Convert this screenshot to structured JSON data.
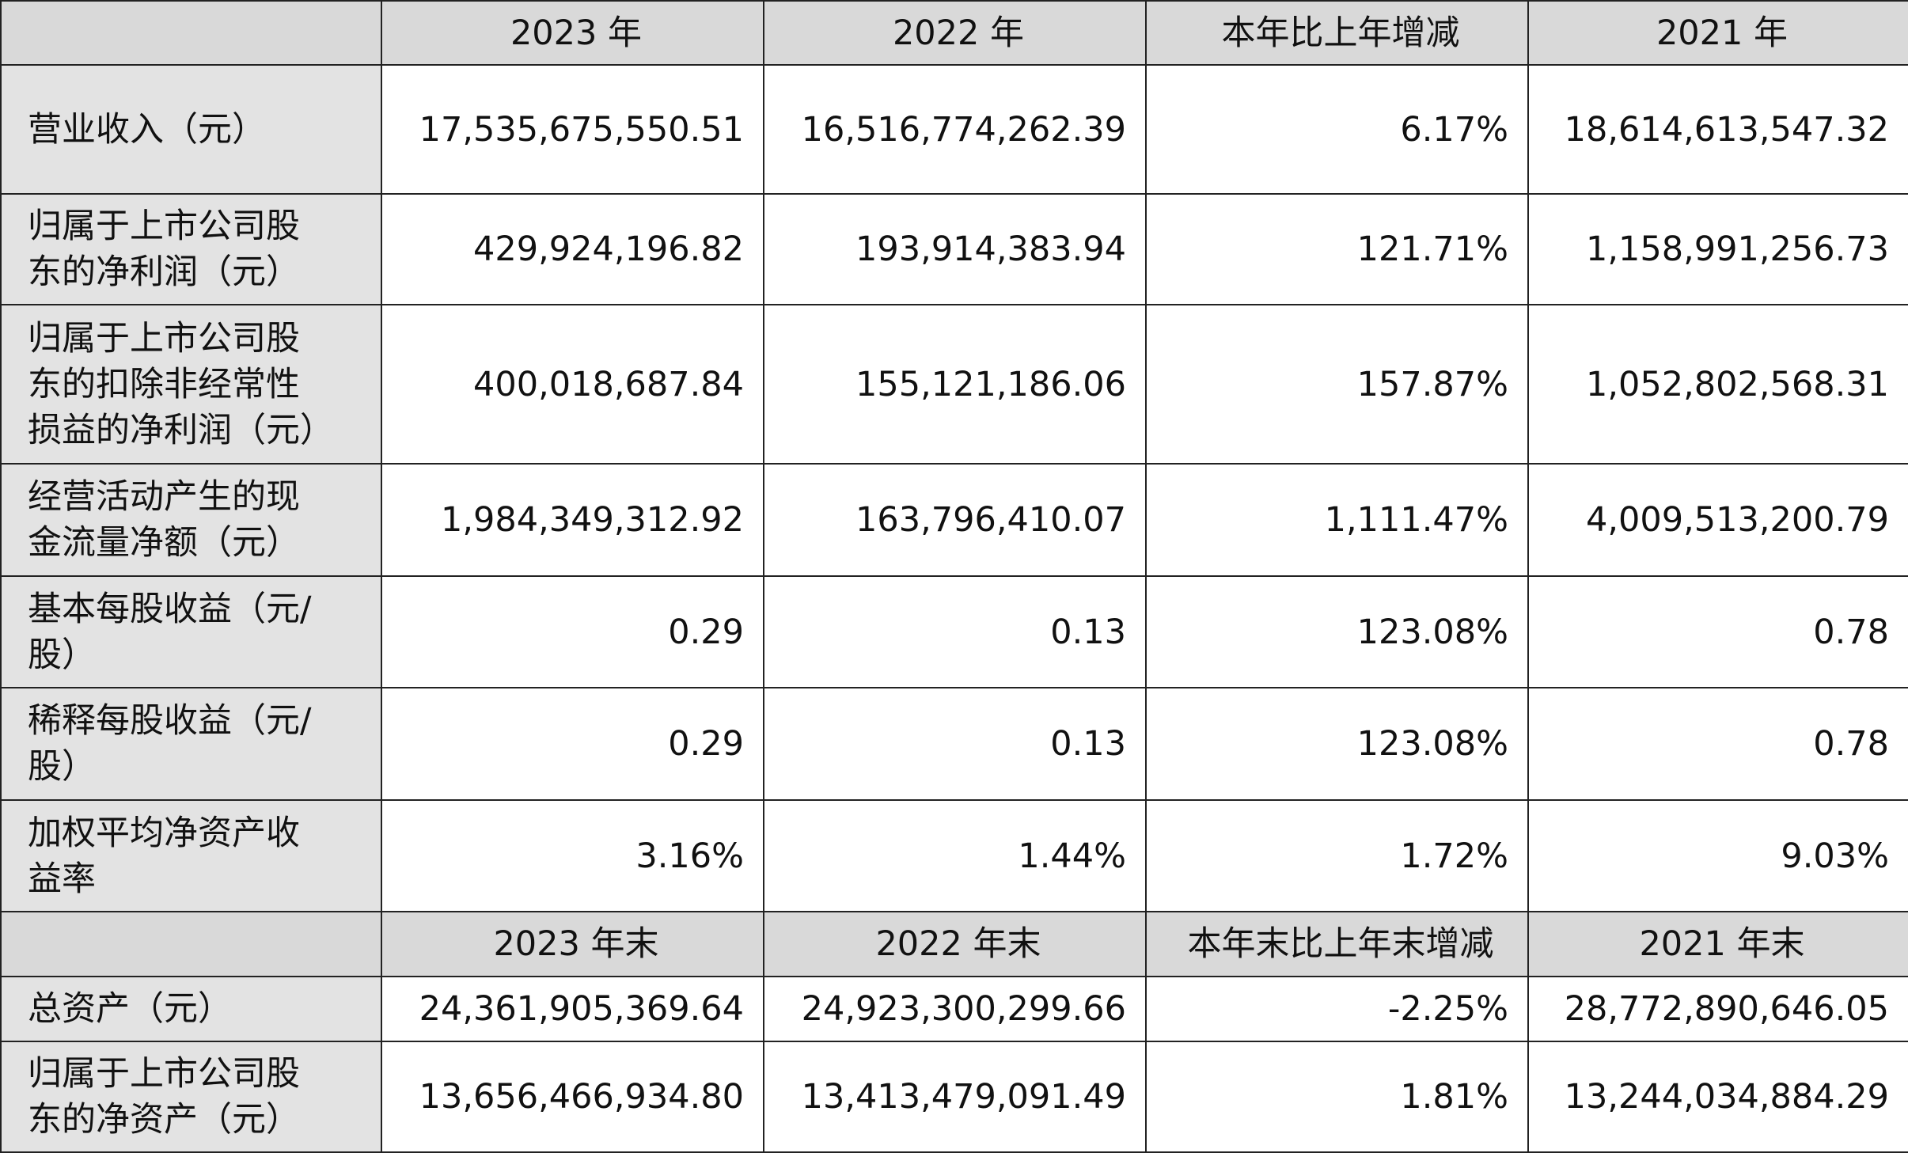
{
  "table": {
    "header1": [
      "2023 年",
      "2022 年",
      "本年比上年增减",
      "2021 年"
    ],
    "rows1": [
      [
        "营业收入（元）",
        "17,535,675,550.51",
        "16,516,774,262.39",
        "6.17%",
        "18,614,613,547.32"
      ],
      [
        "归属于上市公司股东的净利润（元）",
        "429,924,196.82",
        "193,914,383.94",
        "121.71%",
        "1,158,991,256.73"
      ],
      [
        "归属于上市公司股东的扣除非经常性损益的净利润（元）",
        "400,018,687.84",
        "155,121,186.06",
        "157.87%",
        "1,052,802,568.31"
      ],
      [
        "经营活动产生的现金流量净额（元）",
        "1,984,349,312.92",
        "163,796,410.07",
        "1,111.47%",
        "4,009,513,200.79"
      ],
      [
        "基本每股收益（元/股）",
        "0.29",
        "0.13",
        "123.08%",
        "0.78"
      ],
      [
        "稀释每股收益（元/股）",
        "0.29",
        "0.13",
        "123.08%",
        "0.78"
      ],
      [
        "加权平均净资产收益率",
        "3.16%",
        "1.44%",
        "1.72%",
        "9.03%"
      ]
    ],
    "header2": [
      "2023 年末",
      "2022 年末",
      "本年末比上年末增减",
      "2021 年末"
    ],
    "rows2": [
      [
        "总资产（元）",
        "24,361,905,369.64",
        "24,923,300,299.66",
        "-2.25%",
        "28,772,890,646.05"
      ],
      [
        "归属于上市公司股东的净资产（元）",
        "13,656,466,934.80",
        "13,413,479,091.49",
        "1.81%",
        "13,244,034,884.29"
      ]
    ]
  }
}
